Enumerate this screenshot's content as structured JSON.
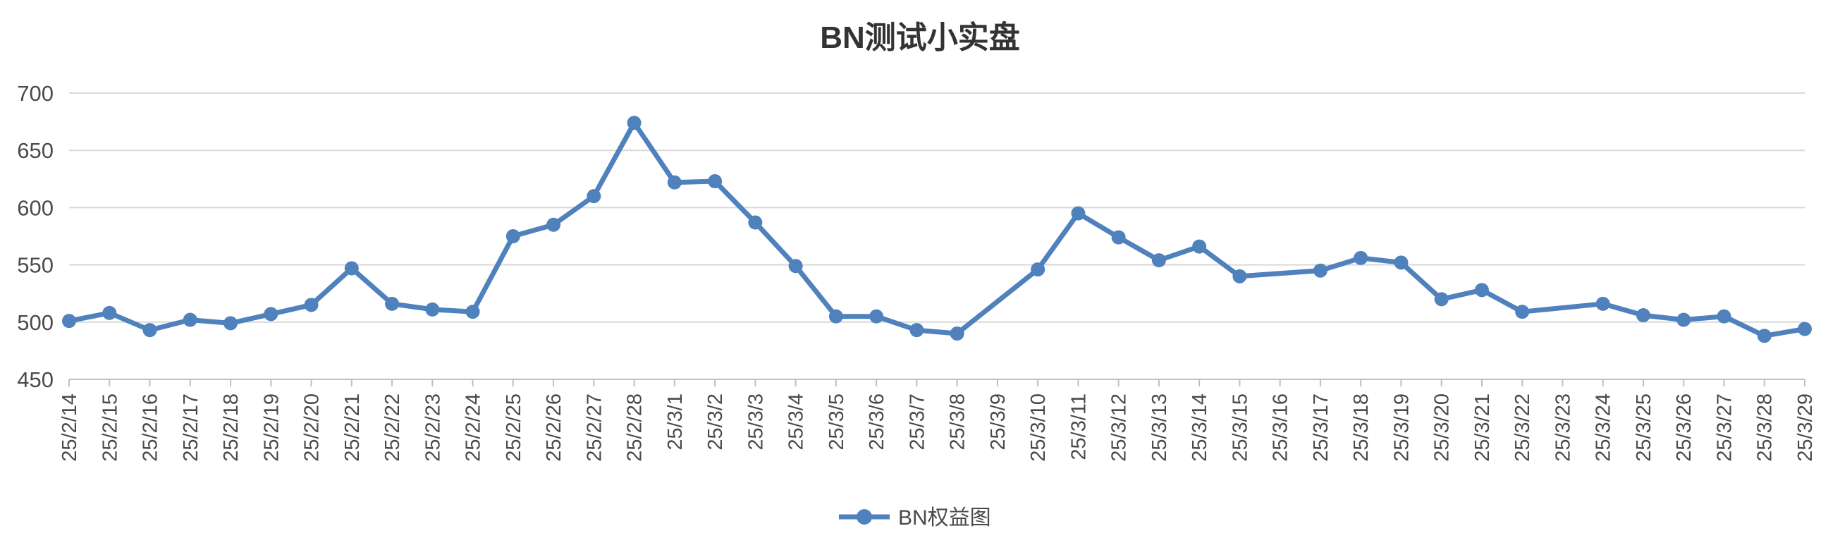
{
  "chart_data": {
    "type": "line",
    "title": "BN测试小实盘",
    "xlabel": "",
    "ylabel": "",
    "ylim": [
      450,
      700
    ],
    "yticks": [
      450,
      500,
      550,
      600,
      650,
      700
    ],
    "grid": true,
    "legend_position": "bottom",
    "colors": {
      "series": "#4F81BD",
      "grid": "#d9d9d9",
      "axis": "#bfbfbf"
    },
    "categories": [
      "25/2/14",
      "25/2/15",
      "25/2/16",
      "25/2/17",
      "25/2/18",
      "25/2/19",
      "25/2/20",
      "25/2/21",
      "25/2/22",
      "25/2/23",
      "25/2/24",
      "25/2/25",
      "25/2/26",
      "25/2/27",
      "25/2/28",
      "25/3/1",
      "25/3/2",
      "25/3/3",
      "25/3/4",
      "25/3/5",
      "25/3/6",
      "25/3/7",
      "25/3/8",
      "25/3/9",
      "25/3/10",
      "25/3/11",
      "25/3/12",
      "25/3/13",
      "25/3/14",
      "25/3/15",
      "25/3/16",
      "25/3/17",
      "25/3/18",
      "25/3/19",
      "25/3/20",
      "25/3/21",
      "25/3/22",
      "25/3/23",
      "25/3/24",
      "25/3/25",
      "25/3/26",
      "25/3/27",
      "25/3/28",
      "25/3/29"
    ],
    "series": [
      {
        "name": "BN权益图",
        "values": [
          501,
          508,
          493,
          502,
          499,
          507,
          515,
          547,
          516,
          511,
          509,
          575,
          585,
          610,
          674,
          622,
          623,
          587,
          549,
          505,
          505,
          493,
          490,
          null,
          546,
          595,
          574,
          554,
          566,
          540,
          null,
          545,
          556,
          552,
          520,
          528,
          509,
          null,
          516,
          506,
          502,
          505,
          488,
          494
        ]
      }
    ]
  }
}
